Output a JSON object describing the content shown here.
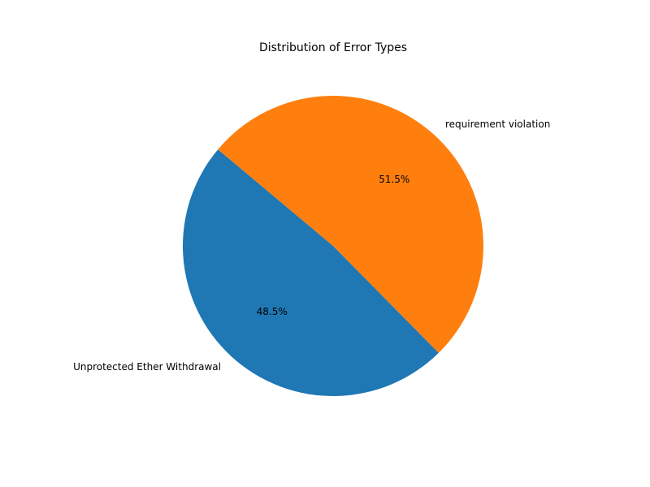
{
  "chart_data": {
    "type": "pie",
    "title": "Distribution of Error Types",
    "slices": [
      {
        "label": "Unprotected Ether Withdrawal",
        "value": 48.5,
        "pct_label": "48.5%",
        "color": "#1f77b4"
      },
      {
        "label": "requirement violation",
        "value": 51.5,
        "pct_label": "51.5%",
        "color": "#ff7f0e"
      }
    ],
    "start_angle_deg": 140,
    "direction": "counterclockwise",
    "legend": "none"
  }
}
